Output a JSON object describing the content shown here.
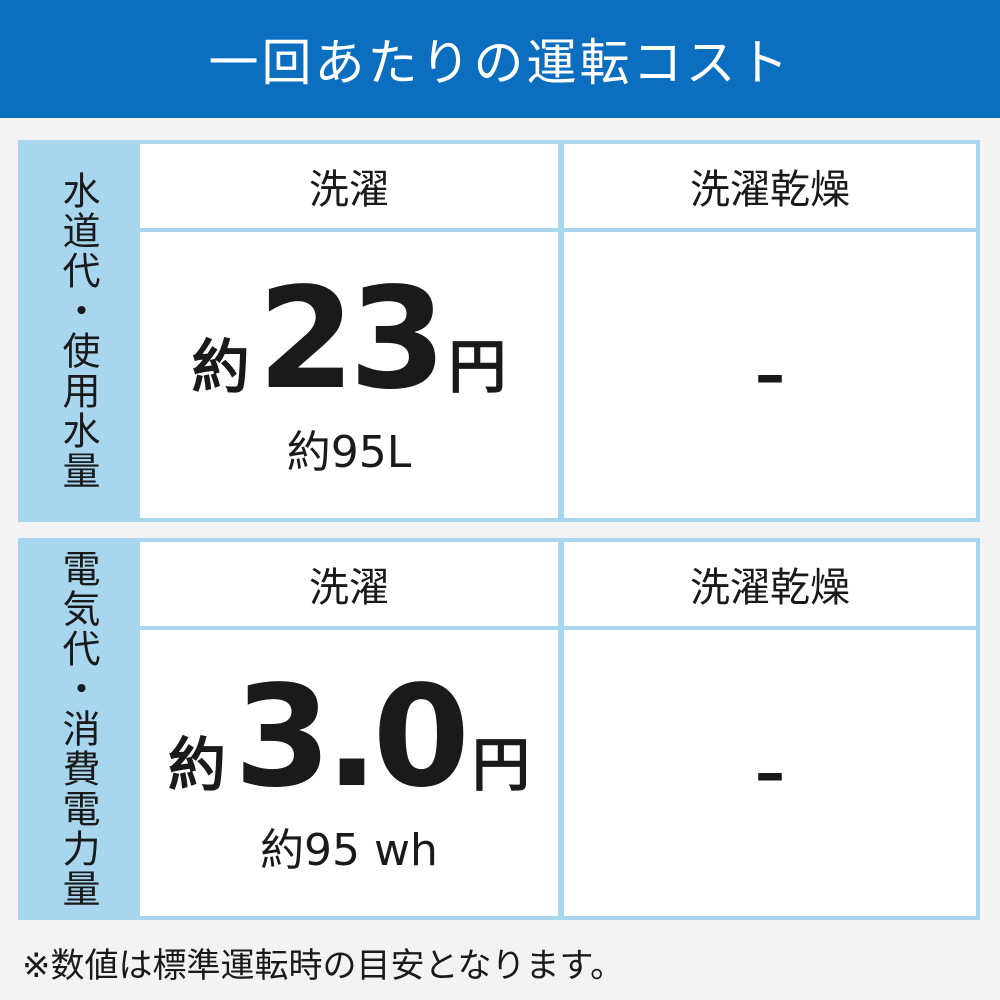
{
  "title": "一回あたりの運転コスト",
  "tables": [
    {
      "row_label": "水道代・使用水量",
      "columns": [
        "洗濯",
        "洗濯乾燥"
      ],
      "wash": {
        "prefix": "約",
        "value": "23",
        "unit": "円",
        "sub": "約95L"
      },
      "wash_dry": "–"
    },
    {
      "row_label": "電気代・消費電力量",
      "columns": [
        "洗濯",
        "洗濯乾燥"
      ],
      "wash": {
        "prefix": "約",
        "value": "3.0",
        "unit": "円",
        "sub": "約95 wh"
      },
      "wash_dry": "–"
    }
  ],
  "note": "※数値は標準運転時の目安となります。",
  "colors": {
    "header": "#0b6ebf",
    "table": "#a8d6ef"
  }
}
